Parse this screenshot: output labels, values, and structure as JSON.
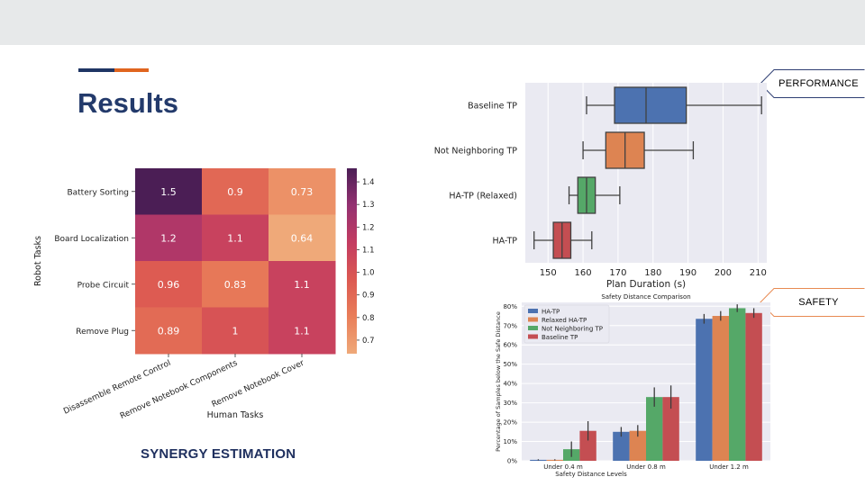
{
  "slide": {
    "title": "Results",
    "section_label": "SYNERGY ESTIMATION",
    "tags": [
      {
        "label": "PERFORMANCE"
      },
      {
        "label": "SAFETY"
      }
    ],
    "colors": {
      "navy": "#1f3564",
      "orange": "#e0651f",
      "tag_performance": "#2f3f73",
      "tag_safety": "#e88a52"
    }
  },
  "chart_data": [
    {
      "type": "heatmap",
      "title": "",
      "xlabel": "Human Tasks",
      "ylabel": "Robot Tasks",
      "x_categories": [
        "Disassemble Remote Control",
        "Remove Notebook Components",
        "Remove Notebook Cover"
      ],
      "y_categories": [
        "Battery Sorting",
        "Board Localization",
        "Probe Circuit",
        "Remove Plug"
      ],
      "values": [
        [
          1.46,
          0.9,
          0.73
        ],
        [
          1.2,
          1.1,
          0.64
        ],
        [
          0.96,
          0.83,
          1.1
        ],
        [
          0.89,
          1.0,
          1.1
        ]
      ],
      "cell_labels": [
        [
          "1.5",
          "0.9",
          "0.73"
        ],
        [
          "1.2",
          "1.1",
          "0.64"
        ],
        [
          "0.96",
          "0.83",
          "1.1"
        ],
        [
          "0.89",
          "1",
          "1.1"
        ]
      ],
      "colorbar": {
        "range": [
          0.64,
          1.46
        ],
        "ticks": [
          "0.7",
          "0.8",
          "0.9",
          "1.0",
          "1.1",
          "1.2",
          "1.3",
          "1.4"
        ],
        "tick_values": [
          0.7,
          0.8,
          0.9,
          1.0,
          1.1,
          1.2,
          1.3,
          1.4
        ]
      },
      "colormap": "flare"
    },
    {
      "type": "box",
      "title": "",
      "xlabel": "Plan Duration (s)",
      "ylabel": "",
      "xlim": [
        143.5,
        212.5
      ],
      "x_ticks": [
        150,
        160,
        170,
        180,
        190,
        200,
        210
      ],
      "grid": true,
      "series": [
        {
          "name": "Baseline TP",
          "whisker_low": 161,
          "q1": 169,
          "median": 178,
          "q3": 189.5,
          "whisker_high": 211,
          "color": "#4c72b0"
        },
        {
          "name": "Not Neighboring TP",
          "whisker_low": 160,
          "q1": 166.5,
          "median": 172,
          "q3": 177.5,
          "whisker_high": 191.5,
          "color": "#dd8452"
        },
        {
          "name": "HA-TP (Relaxed)",
          "whisker_low": 156,
          "q1": 158.5,
          "median": 161,
          "q3": 163.5,
          "whisker_high": 170.5,
          "color": "#55a868"
        },
        {
          "name": "HA-TP",
          "whisker_low": 146,
          "q1": 151.5,
          "median": 154,
          "q3": 156.5,
          "whisker_high": 162.5,
          "color": "#c44e52"
        }
      ]
    },
    {
      "type": "bar",
      "title": "Safety Distance Comparison",
      "xlabel": "Safety Distance Levels",
      "ylabel": "Percentage of Samples below the Safe Distance",
      "ylim": [
        0,
        82
      ],
      "y_ticks": [
        0,
        10,
        20,
        30,
        40,
        50,
        60,
        70,
        80
      ],
      "y_tick_labels": [
        "0%",
        "10%",
        "20%",
        "30%",
        "40%",
        "50%",
        "60%",
        "70%",
        "80%"
      ],
      "categories": [
        "Under 0.4 m",
        "Under 0.8 m",
        "Under 1.2 m"
      ],
      "legend_position": "top-left",
      "grid": true,
      "series": [
        {
          "name": "HA-TP",
          "values": [
            0.5,
            15,
            73.5
          ],
          "errors": [
            0.3,
            2.5,
            2.5
          ],
          "color": "#4c72b0"
        },
        {
          "name": "Relaxed HA-TP",
          "values": [
            0.5,
            15.5,
            75
          ],
          "errors": [
            0.3,
            3,
            2.5
          ],
          "color": "#dd8452"
        },
        {
          "name": "Not Neighboring TP",
          "values": [
            6,
            33,
            79
          ],
          "errors": [
            4,
            5,
            2
          ],
          "color": "#55a868"
        },
        {
          "name": "Baseline TP",
          "values": [
            15.5,
            33,
            76.5
          ],
          "errors": [
            5,
            6,
            2.5
          ],
          "color": "#c44e52"
        }
      ]
    }
  ]
}
